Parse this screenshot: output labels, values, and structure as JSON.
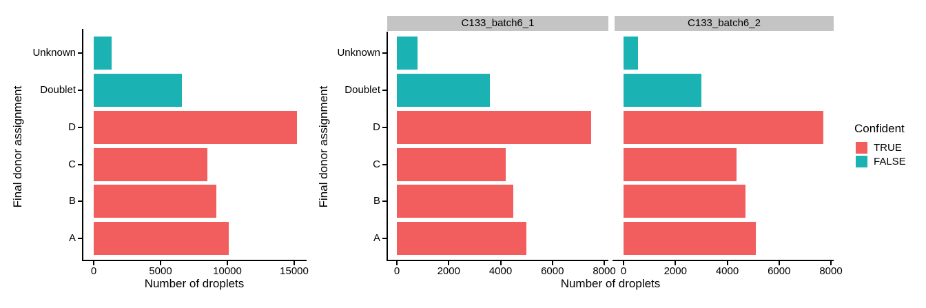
{
  "palette": {
    "true_color": "#F25D5D",
    "false_color": "#1AB2B3",
    "strip_bg": "#C4C4C4",
    "axis_color": "#000000"
  },
  "legend": {
    "title": "Confident",
    "entries": [
      {
        "label": "TRUE",
        "color_key": "true_color"
      },
      {
        "label": "FALSE",
        "color_key": "false_color"
      }
    ]
  },
  "chart_data": [
    {
      "type": "bar",
      "orientation": "horizontal",
      "panel": "overall",
      "title": "",
      "categories": [
        "Unknown",
        "Doublet",
        "D",
        "C",
        "B",
        "A"
      ],
      "values": [
        1350,
        6600,
        15200,
        8500,
        9150,
        10100
      ],
      "confident": [
        false,
        false,
        true,
        true,
        true,
        true
      ],
      "xticks": [
        0,
        5000,
        10000,
        15000
      ],
      "xlim": [
        0,
        16000
      ],
      "xlabel": "Number of droplets",
      "ylabel": "Final donor assignment",
      "grid": false
    },
    {
      "type": "bar",
      "orientation": "horizontal",
      "panel": "facet-1",
      "facet_label": "C133_batch6_1",
      "categories": [
        "Unknown",
        "Doublet",
        "D",
        "C",
        "B",
        "A"
      ],
      "values": [
        800,
        3600,
        7500,
        4200,
        4500,
        5000
      ],
      "confident": [
        false,
        false,
        true,
        true,
        true,
        true
      ],
      "xticks": [
        0,
        2000,
        4000,
        6000,
        8000
      ],
      "xlim": [
        0,
        8200
      ],
      "xlabel": "Number of droplets",
      "ylabel": "Final donor assignment",
      "grid": false
    },
    {
      "type": "bar",
      "orientation": "horizontal",
      "panel": "facet-2",
      "facet_label": "C133_batch6_2",
      "categories": [
        "Unknown",
        "Doublet",
        "D",
        "C",
        "B",
        "A"
      ],
      "values": [
        550,
        3000,
        7700,
        4350,
        4700,
        5100
      ],
      "confident": [
        false,
        false,
        true,
        true,
        true,
        true
      ],
      "xticks": [
        0,
        2000,
        4000,
        6000,
        8000
      ],
      "xlim": [
        0,
        8200
      ],
      "xlabel": "Number of droplets",
      "ylabel": "Final donor assignment",
      "grid": false
    }
  ]
}
